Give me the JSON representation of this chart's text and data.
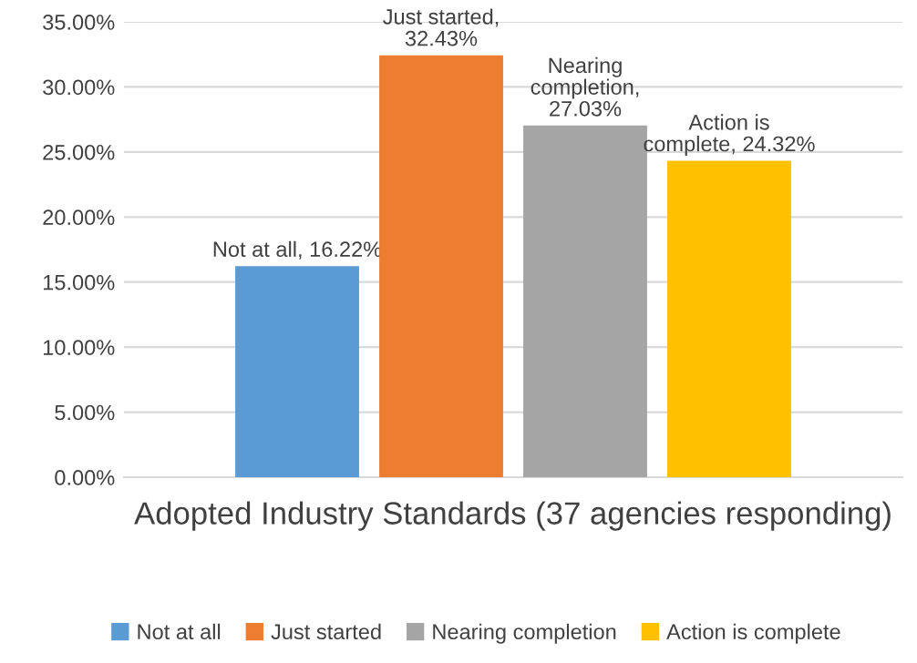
{
  "chart_data": {
    "type": "bar",
    "xlabel": "Adopted Industry Standards (37 agencies responding)",
    "categories": [
      null
    ],
    "series": [
      {
        "name": "Not at all",
        "color": "#5b9bd5",
        "values": [
          16.22
        ],
        "value_labels": [
          "Not at all, 16.22%"
        ]
      },
      {
        "name": "Just started",
        "color": "#ed7d31",
        "values": [
          32.43
        ],
        "value_labels": [
          "Just started,\n32.43%"
        ]
      },
      {
        "name": "Nearing completion",
        "color": "#a5a5a5",
        "values": [
          27.03
        ],
        "value_labels": [
          "Nearing\ncompletion,\n27.03%"
        ]
      },
      {
        "name": "Action is complete",
        "color": "#ffc000",
        "values": [
          24.32
        ],
        "value_labels": [
          "Action is\ncomplete, 24.32%"
        ]
      }
    ],
    "ylim": [
      0,
      35
    ],
    "yticks": [
      {
        "value": 0,
        "label": "0.00%"
      },
      {
        "value": 5,
        "label": "5.00%"
      },
      {
        "value": 10,
        "label": "10.00%"
      },
      {
        "value": 15,
        "label": "15.00%"
      },
      {
        "value": 20,
        "label": "20.00%"
      },
      {
        "value": 25,
        "label": "25.00%"
      },
      {
        "value": 30,
        "label": "30.00%"
      },
      {
        "value": 35,
        "label": "35.00%"
      }
    ],
    "grid": "y",
    "legend": "bottom"
  }
}
